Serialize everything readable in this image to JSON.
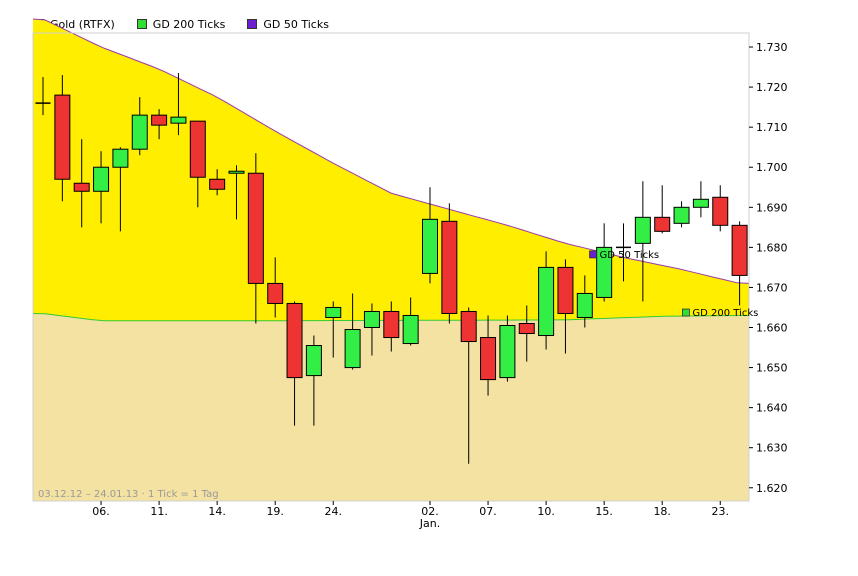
{
  "legend": [
    {
      "label": "Gold (RTFX)",
      "color": "#ee3333"
    },
    {
      "label": "GD 200 Ticks",
      "color": "#33dd33"
    },
    {
      "label": "GD 50 Ticks",
      "color": "#6a1fd0"
    }
  ],
  "note": "03.12.12 – 24.01.13 · 1 Tick = 1 Tag",
  "chart_data": {
    "type": "candlestick",
    "y_ticks": [
      "1.730",
      "1.720",
      "1.710",
      "1.700",
      "1.690",
      "1.680",
      "1.670",
      "1.660",
      "1.650",
      "1.640",
      "1.630",
      "1.620"
    ],
    "ylim": [
      1.6167,
      1.7335
    ],
    "x_ticks": [
      {
        "label": "06.",
        "index": 3
      },
      {
        "label": "11.",
        "index": 6
      },
      {
        "label": "14.",
        "index": 9
      },
      {
        "label": "19.",
        "index": 12
      },
      {
        "label": "24.",
        "index": 15
      },
      {
        "label": "02.",
        "index": 20
      },
      {
        "label": "07.",
        "index": 23
      },
      {
        "label": "10.",
        "index": 26
      },
      {
        "label": "15.",
        "index": 29
      },
      {
        "label": "18.",
        "index": 32
      },
      {
        "label": "23.",
        "index": 35
      }
    ],
    "x_sublabel": {
      "label": "Jan.",
      "index": 20
    },
    "candles": [
      {
        "o": 1.716,
        "h": 1.7225,
        "l": 1.713,
        "c": 1.716
      },
      {
        "o": 1.718,
        "h": 1.723,
        "l": 1.6915,
        "c": 1.697
      },
      {
        "o": 1.696,
        "h": 1.707,
        "l": 1.685,
        "c": 1.694
      },
      {
        "o": 1.694,
        "h": 1.704,
        "l": 1.686,
        "c": 1.7
      },
      {
        "o": 1.7,
        "h": 1.705,
        "l": 1.684,
        "c": 1.7045
      },
      {
        "o": 1.7045,
        "h": 1.7175,
        "l": 1.703,
        "c": 1.713
      },
      {
        "o": 1.713,
        "h": 1.7145,
        "l": 1.707,
        "c": 1.7105
      },
      {
        "o": 1.711,
        "h": 1.7235,
        "l": 1.708,
        "c": 1.7125
      },
      {
        "o": 1.7115,
        "h": 1.7115,
        "l": 1.69,
        "c": 1.6975
      },
      {
        "o": 1.697,
        "h": 1.6995,
        "l": 1.693,
        "c": 1.6945
      },
      {
        "o": 1.6985,
        "h": 1.7005,
        "l": 1.687,
        "c": 1.699
      },
      {
        "o": 1.6985,
        "h": 1.7035,
        "l": 1.661,
        "c": 1.671
      },
      {
        "o": 1.671,
        "h": 1.6775,
        "l": 1.6625,
        "c": 1.666
      },
      {
        "o": 1.666,
        "h": 1.6665,
        "l": 1.6355,
        "c": 1.6475
      },
      {
        "o": 1.648,
        "h": 1.658,
        "l": 1.6355,
        "c": 1.6555
      },
      {
        "o": 1.6625,
        "h": 1.6665,
        "l": 1.6525,
        "c": 1.665
      },
      {
        "o": 1.65,
        "h": 1.6685,
        "l": 1.6495,
        "c": 1.6595
      },
      {
        "o": 1.66,
        "h": 1.666,
        "l": 1.653,
        "c": 1.664
      },
      {
        "o": 1.664,
        "h": 1.6665,
        "l": 1.654,
        "c": 1.6575
      },
      {
        "o": 1.656,
        "h": 1.6675,
        "l": 1.6555,
        "c": 1.663
      },
      {
        "o": 1.6735,
        "h": 1.695,
        "l": 1.671,
        "c": 1.687
      },
      {
        "o": 1.6865,
        "h": 1.691,
        "l": 1.661,
        "c": 1.6635
      },
      {
        "o": 1.664,
        "h": 1.665,
        "l": 1.626,
        "c": 1.6565
      },
      {
        "o": 1.6575,
        "h": 1.663,
        "l": 1.643,
        "c": 1.647
      },
      {
        "o": 1.6475,
        "h": 1.663,
        "l": 1.6465,
        "c": 1.6605
      },
      {
        "o": 1.661,
        "h": 1.6655,
        "l": 1.6515,
        "c": 1.6585
      },
      {
        "o": 1.658,
        "h": 1.679,
        "l": 1.6545,
        "c": 1.675
      },
      {
        "o": 1.675,
        "h": 1.677,
        "l": 1.6535,
        "c": 1.6635
      },
      {
        "o": 1.6625,
        "h": 1.673,
        "l": 1.66,
        "c": 1.6685
      },
      {
        "o": 1.6675,
        "h": 1.686,
        "l": 1.6665,
        "c": 1.68
      },
      {
        "o": 1.68,
        "h": 1.686,
        "l": 1.6715,
        "c": 1.68
      },
      {
        "o": 1.681,
        "h": 1.6965,
        "l": 1.6665,
        "c": 1.6875
      },
      {
        "o": 1.6875,
        "h": 1.6955,
        "l": 1.6835,
        "c": 1.684
      },
      {
        "o": 1.686,
        "h": 1.6915,
        "l": 1.685,
        "c": 1.69
      },
      {
        "o": 1.69,
        "h": 1.6965,
        "l": 1.6875,
        "c": 1.692
      },
      {
        "o": 1.6925,
        "h": 1.6955,
        "l": 1.684,
        "c": 1.6855
      },
      {
        "o": 1.6855,
        "h": 1.6865,
        "l": 1.6655,
        "c": 1.673
      }
    ],
    "ma50": {
      "label": "GD 50 Ticks",
      "anchors": [
        [
          0,
          1.737
        ],
        [
          3,
          1.73
        ],
        [
          6,
          1.7245
        ],
        [
          9,
          1.7175
        ],
        [
          12,
          1.709
        ],
        [
          15,
          1.701
        ],
        [
          18,
          1.6935
        ],
        [
          21,
          1.6895
        ],
        [
          24,
          1.6855
        ],
        [
          27,
          1.681
        ],
        [
          30,
          1.6775
        ],
        [
          33,
          1.6745
        ],
        [
          36,
          1.671
        ]
      ]
    },
    "ma200": {
      "label": "GD 200 Ticks",
      "anchors": [
        [
          0,
          1.6635
        ],
        [
          3,
          1.6617
        ],
        [
          12,
          1.6617
        ],
        [
          20,
          1.6618
        ],
        [
          27,
          1.6619
        ],
        [
          32,
          1.6628
        ],
        [
          36,
          1.663
        ]
      ]
    },
    "colors": {
      "up": "#33ee44",
      "down": "#ee3333",
      "ma50_line": "#9d3aa8",
      "ma200_line": "#33cc33",
      "fill_upper": "#ffee00",
      "fill_lower": "#f3e2a1"
    }
  }
}
